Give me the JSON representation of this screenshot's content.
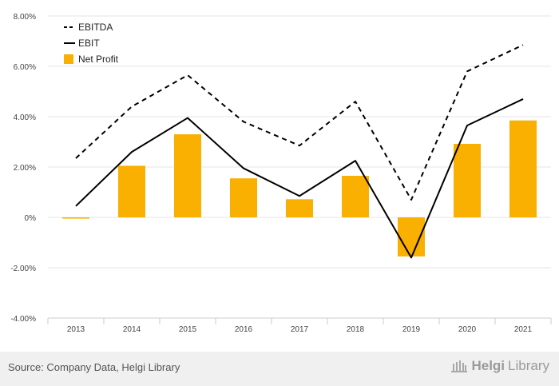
{
  "chart_data": {
    "type": "bar",
    "categories": [
      "2013",
      "2014",
      "2015",
      "2016",
      "2017",
      "2018",
      "2019",
      "2020",
      "2021"
    ],
    "series": [
      {
        "name": "EBITDA",
        "kind": "line",
        "style": "dashed",
        "color": "#000000",
        "values": [
          2.35,
          4.4,
          5.65,
          3.8,
          2.85,
          4.6,
          0.7,
          5.8,
          6.85
        ]
      },
      {
        "name": "EBIT",
        "kind": "line",
        "style": "solid",
        "color": "#000000",
        "values": [
          0.45,
          2.6,
          3.95,
          1.95,
          0.85,
          2.25,
          -1.6,
          3.65,
          4.7
        ]
      },
      {
        "name": "Net Profit",
        "kind": "bar",
        "color": "#f9b000",
        "values": [
          -0.05,
          2.05,
          3.3,
          1.55,
          0.72,
          1.65,
          -1.55,
          2.92,
          3.85
        ]
      }
    ],
    "ylim": [
      -4,
      8
    ],
    "yticks": [
      -4,
      -2,
      0,
      2,
      4,
      6,
      8
    ],
    "ytick_labels": [
      "-4.00%",
      "-2.00%",
      "0%",
      "2.00%",
      "4.00%",
      "6.00%",
      "8.00%"
    ],
    "grid": true,
    "legend_position": "top-left"
  },
  "footer": {
    "source": "Source: Company Data, Helgi Library",
    "brand_a": "Helgi",
    "brand_b": "Library"
  }
}
